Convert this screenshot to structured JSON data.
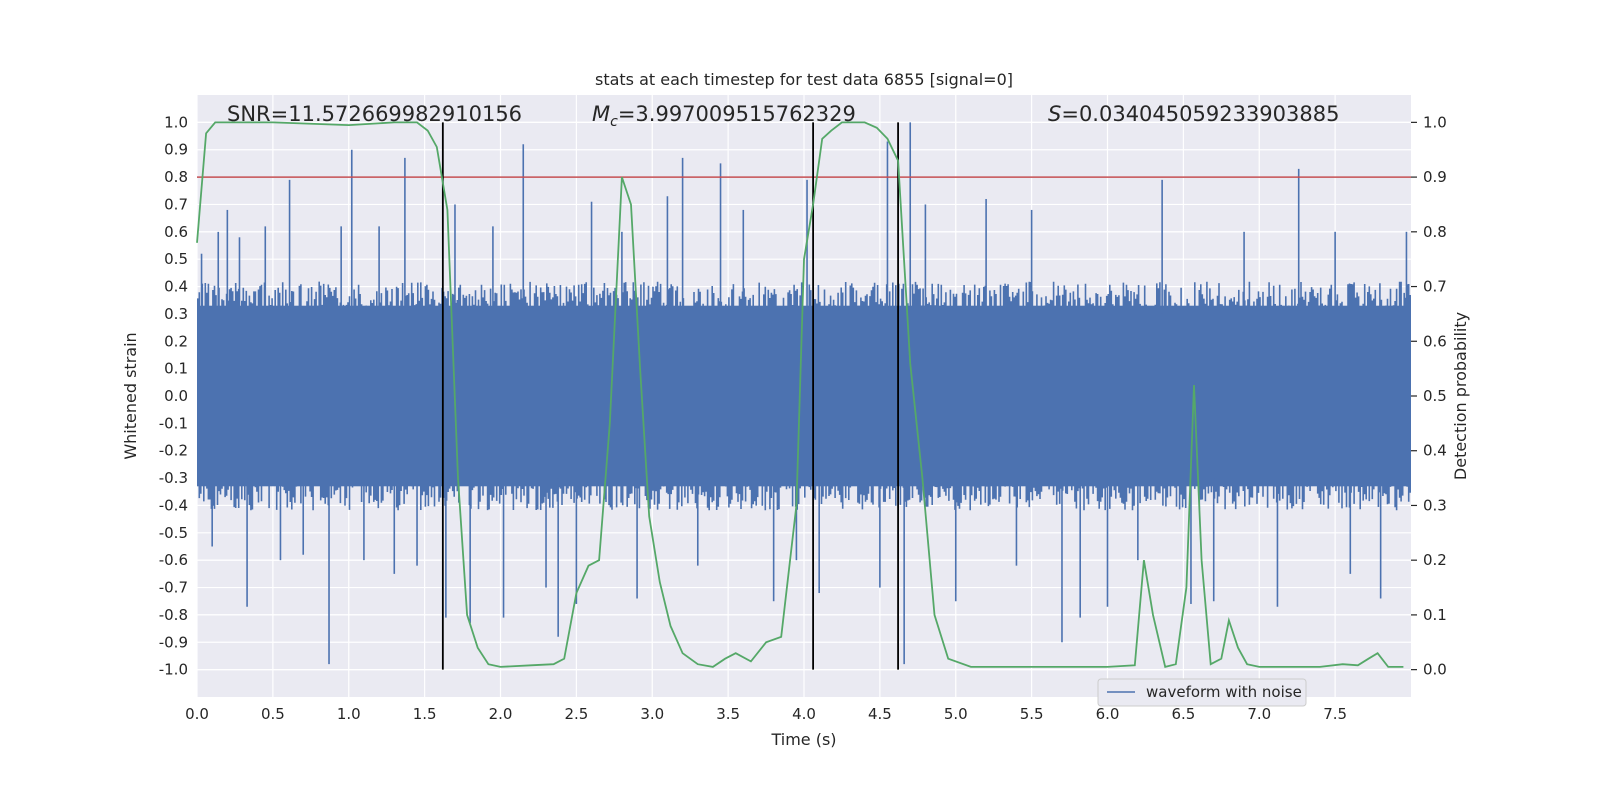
{
  "chart_data": {
    "type": "line",
    "title": "stats at each timestep for test data 6855 [signal=0]",
    "xlabel": "Time (s)",
    "ylabel": "Whitened strain",
    "y2label": "Detection probability",
    "xlim": [
      0,
      8
    ],
    "ylim": [
      -1.1,
      1.1
    ],
    "y2lim": [
      -0.05,
      1.05
    ],
    "x_ticks": [
      0.0,
      0.5,
      1.0,
      1.5,
      2.0,
      2.5,
      3.0,
      3.5,
      4.0,
      4.5,
      5.0,
      5.5,
      6.0,
      6.5,
      7.0,
      7.5
    ],
    "x_tick_labels": [
      "0.0",
      "0.5",
      "1.0",
      "1.5",
      "2.0",
      "2.5",
      "3.0",
      "3.5",
      "4.0",
      "4.5",
      "5.0",
      "5.5",
      "6.0",
      "6.5",
      "7.0",
      "7.5"
    ],
    "y_ticks": [
      1.0,
      0.9,
      0.8,
      0.7,
      0.6,
      0.5,
      0.4,
      0.3,
      0.2,
      0.1,
      0.0,
      -0.1,
      -0.2,
      -0.3,
      -0.4,
      -0.5,
      -0.6,
      -0.7,
      -0.8,
      -0.9,
      -1.0
    ],
    "y_tick_labels": [
      "1.0",
      "0.9",
      "0.8",
      "0.7",
      "0.6",
      "0.5",
      "0.4",
      "0.3",
      "0.2",
      "0.1",
      "0.0",
      "-0.1",
      "-0.2",
      "-0.3",
      "-0.4",
      "-0.5",
      "-0.6",
      "-0.7",
      "-0.8",
      "-0.9",
      "-1.0"
    ],
    "y2_ticks": [
      1.0,
      0.9,
      0.8,
      0.7,
      0.6,
      0.5,
      0.4,
      0.3,
      0.2,
      0.1,
      0.0
    ],
    "y2_tick_labels": [
      "1.0",
      "0.9",
      "0.8",
      "0.7",
      "0.6",
      "0.5",
      "0.4",
      "0.3",
      "0.2",
      "0.1",
      "0.0"
    ],
    "annotations": {
      "snr": "SNR=11.572669982910156",
      "mc_symbol": "M",
      "mc_sub": "c",
      "mc_value": "=3.997009515762329",
      "s_symbol": "S",
      "s_value": "=0.034045059233903885"
    },
    "threshold": {
      "value": 0.9,
      "axis": "y2",
      "color": "#c44e52"
    },
    "vertical_lines": [
      1.62,
      4.06,
      4.62
    ],
    "waveform": {
      "name": "waveform with noise",
      "color": "#4c72b0",
      "n_samples": 800,
      "amplitude_envelope": 0.38,
      "peaks": [
        {
          "x": 0.03,
          "y": 0.52
        },
        {
          "x": 0.1,
          "y": -0.55
        },
        {
          "x": 0.14,
          "y": 0.6
        },
        {
          "x": 0.2,
          "y": 0.68
        },
        {
          "x": 0.28,
          "y": 0.58
        },
        {
          "x": 0.33,
          "y": -0.77
        },
        {
          "x": 0.45,
          "y": 0.62
        },
        {
          "x": 0.55,
          "y": -0.6
        },
        {
          "x": 0.61,
          "y": 0.79
        },
        {
          "x": 0.7,
          "y": -0.58
        },
        {
          "x": 0.87,
          "y": -0.98
        },
        {
          "x": 0.95,
          "y": 0.62
        },
        {
          "x": 1.02,
          "y": 0.9
        },
        {
          "x": 1.1,
          "y": -0.6
        },
        {
          "x": 1.2,
          "y": 0.62
        },
        {
          "x": 1.3,
          "y": -0.65
        },
        {
          "x": 1.37,
          "y": 0.87
        },
        {
          "x": 1.45,
          "y": -0.62
        },
        {
          "x": 1.64,
          "y": -0.81
        },
        {
          "x": 1.7,
          "y": 0.7
        },
        {
          "x": 1.8,
          "y": -0.83
        },
        {
          "x": 1.95,
          "y": 0.62
        },
        {
          "x": 2.02,
          "y": -0.81
        },
        {
          "x": 2.15,
          "y": 0.92
        },
        {
          "x": 2.3,
          "y": -0.7
        },
        {
          "x": 2.38,
          "y": -0.88
        },
        {
          "x": 2.5,
          "y": -0.76
        },
        {
          "x": 2.6,
          "y": 0.71
        },
        {
          "x": 2.8,
          "y": 0.6
        },
        {
          "x": 2.9,
          "y": -0.74
        },
        {
          "x": 3.1,
          "y": 0.73
        },
        {
          "x": 3.2,
          "y": 0.87
        },
        {
          "x": 3.3,
          "y": -0.62
        },
        {
          "x": 3.45,
          "y": 0.85
        },
        {
          "x": 3.6,
          "y": 0.68
        },
        {
          "x": 3.8,
          "y": -0.75
        },
        {
          "x": 3.95,
          "y": -0.6
        },
        {
          "x": 4.02,
          "y": 0.79
        },
        {
          "x": 4.1,
          "y": -0.72
        },
        {
          "x": 4.5,
          "y": -0.7
        },
        {
          "x": 4.55,
          "y": 0.93
        },
        {
          "x": 4.66,
          "y": -0.98
        },
        {
          "x": 4.7,
          "y": 1.0
        },
        {
          "x": 4.8,
          "y": 0.7
        },
        {
          "x": 5.0,
          "y": -0.75
        },
        {
          "x": 5.2,
          "y": 0.72
        },
        {
          "x": 5.4,
          "y": -0.62
        },
        {
          "x": 5.5,
          "y": 0.68
        },
        {
          "x": 5.7,
          "y": -0.9
        },
        {
          "x": 5.82,
          "y": -0.81
        },
        {
          "x": 6.0,
          "y": -0.77
        },
        {
          "x": 6.2,
          "y": -0.6
        },
        {
          "x": 6.36,
          "y": 0.79
        },
        {
          "x": 6.55,
          "y": -0.76
        },
        {
          "x": 6.7,
          "y": -0.75
        },
        {
          "x": 6.9,
          "y": 0.6
        },
        {
          "x": 7.12,
          "y": -0.77
        },
        {
          "x": 7.26,
          "y": 0.83
        },
        {
          "x": 7.5,
          "y": 0.6
        },
        {
          "x": 7.6,
          "y": -0.65
        },
        {
          "x": 7.8,
          "y": -0.74
        },
        {
          "x": 7.97,
          "y": 0.6
        }
      ]
    },
    "probability": {
      "color": "#55a868",
      "x": [
        0.0,
        0.06,
        0.12,
        0.5,
        1.0,
        1.3,
        1.45,
        1.52,
        1.58,
        1.65,
        1.72,
        1.78,
        1.85,
        1.92,
        2.0,
        2.2,
        2.35,
        2.42,
        2.5,
        2.58,
        2.65,
        2.72,
        2.8,
        2.86,
        2.92,
        2.98,
        3.05,
        3.12,
        3.2,
        3.3,
        3.4,
        3.48,
        3.55,
        3.65,
        3.75,
        3.85,
        3.95,
        4.0,
        4.06,
        4.12,
        4.18,
        4.25,
        4.4,
        4.48,
        4.55,
        4.62,
        4.7,
        4.78,
        4.86,
        4.95,
        5.1,
        5.5,
        6.0,
        6.18,
        6.24,
        6.3,
        6.38,
        6.45,
        6.52,
        6.57,
        6.62,
        6.68,
        6.75,
        6.8,
        6.86,
        6.92,
        7.0,
        7.2,
        7.4,
        7.55,
        7.65,
        7.72,
        7.78,
        7.85,
        7.95
      ],
      "y": [
        0.78,
        0.98,
        1.0,
        1.0,
        0.995,
        1.0,
        1.0,
        0.985,
        0.955,
        0.84,
        0.35,
        0.1,
        0.04,
        0.01,
        0.005,
        0.008,
        0.01,
        0.02,
        0.14,
        0.19,
        0.2,
        0.45,
        0.9,
        0.85,
        0.55,
        0.28,
        0.16,
        0.08,
        0.03,
        0.01,
        0.005,
        0.02,
        0.03,
        0.015,
        0.05,
        0.06,
        0.3,
        0.75,
        0.85,
        0.97,
        0.985,
        1.0,
        1.0,
        0.99,
        0.97,
        0.93,
        0.56,
        0.35,
        0.1,
        0.02,
        0.005,
        0.005,
        0.005,
        0.008,
        0.2,
        0.1,
        0.005,
        0.01,
        0.15,
        0.52,
        0.2,
        0.01,
        0.02,
        0.09,
        0.04,
        0.01,
        0.005,
        0.005,
        0.005,
        0.01,
        0.008,
        0.02,
        0.03,
        0.005,
        0.005
      ]
    },
    "legend": {
      "label": "waveform with noise",
      "placement": "lower-center"
    }
  }
}
